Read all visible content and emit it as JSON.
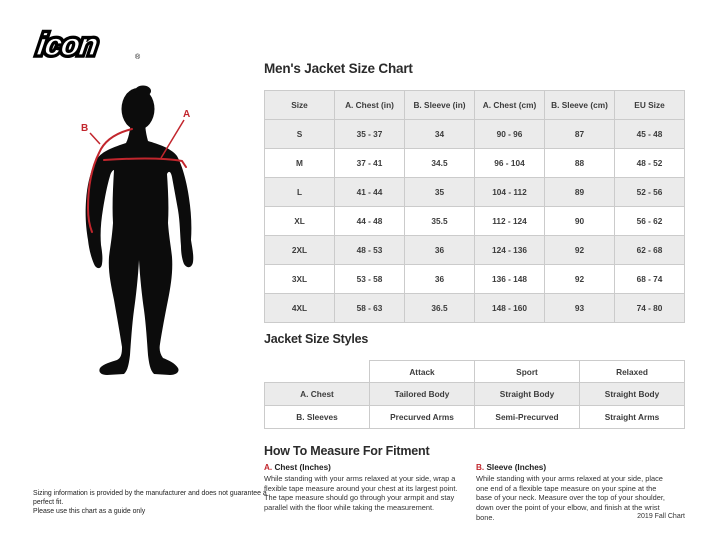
{
  "logo": {
    "text": "icon",
    "registered": "®"
  },
  "figure": {
    "label_a": "A",
    "label_b": "B"
  },
  "size_chart": {
    "title": "Men's Jacket Size Chart",
    "columns": [
      "Size",
      "A. Chest (in)",
      "B. Sleeve (in)",
      "A. Chest (cm)",
      "B. Sleeve (cm)",
      "EU Size"
    ],
    "rows": [
      [
        "S",
        "35 - 37",
        "34",
        "90 - 96",
        "87",
        "45 - 48"
      ],
      [
        "M",
        "37 - 41",
        "34.5",
        "96 - 104",
        "88",
        "48 - 52"
      ],
      [
        "L",
        "41 - 44",
        "35",
        "104 - 112",
        "89",
        "52 - 56"
      ],
      [
        "XL",
        "44 - 48",
        "35.5",
        "112 - 124",
        "90",
        "56 - 62"
      ],
      [
        "2XL",
        "48 - 53",
        "36",
        "124 - 136",
        "92",
        "62 - 68"
      ],
      [
        "3XL",
        "53 - 58",
        "36",
        "136 - 148",
        "92",
        "68 - 74"
      ],
      [
        "4XL",
        "58 - 63",
        "36.5",
        "148 - 160",
        "93",
        "74 - 80"
      ]
    ]
  },
  "styles_table": {
    "title": "Jacket Size Styles",
    "columns": [
      "",
      "Attack",
      "Sport",
      "Relaxed"
    ],
    "rows": [
      [
        "A. Chest",
        "Tailored Body",
        "Straight Body",
        "Straight Body"
      ],
      [
        "B. Sleeves",
        "Precurved Arms",
        "Semi-Precurved",
        "Straight Arms"
      ]
    ]
  },
  "measure": {
    "title": "How To Measure For Fitment",
    "sections": [
      {
        "letter": "A.",
        "label": "Chest (Inches)",
        "text": "While standing with your arms relaxed at your side, wrap a flexible tape measure around your chest at its largest point. The tape measure should go through your armpit and stay parallel with the floor while taking the measurement."
      },
      {
        "letter": "B.",
        "label": "Sleeve (Inches)",
        "text": "While standing with your arms relaxed at your side, place one end of a flexible tape measure on your spine at the base of your neck. Measure over the top of your shoulder, down over the point of your elbow, and finish at the wrist bone."
      }
    ]
  },
  "footer": {
    "disclaimer_lines": [
      "Sizing information is provided by the manufacturer and does not guarantee a perfect fit.",
      "Please use this chart as a guide only"
    ],
    "chart_version": "2019 Fall Chart"
  },
  "colors": {
    "accent_red": "#c2262d",
    "row_gray": "#ebebeb",
    "border_gray": "#cbcbcb",
    "text": "#3c3c3c"
  }
}
